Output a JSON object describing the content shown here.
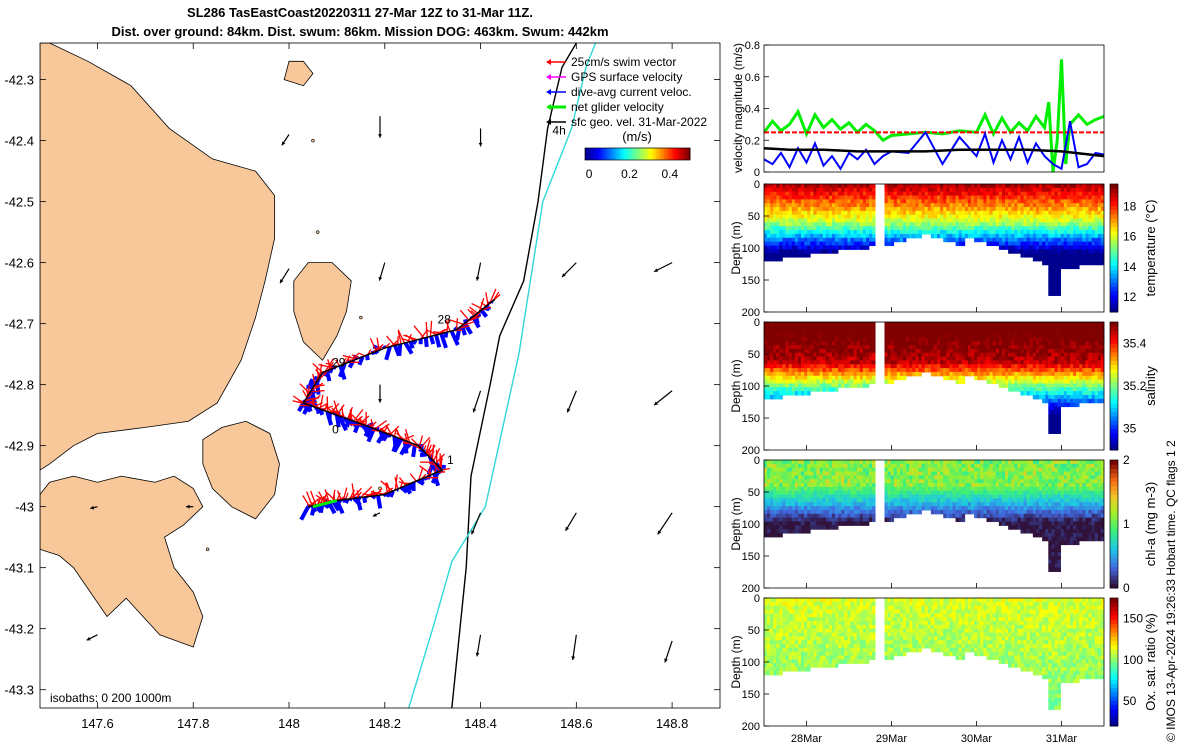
{
  "title": {
    "line1": "SL286 TasEastCoast20220311 27-Mar 12Z to 31-Mar 11Z.",
    "line2": "Dist. over ground: 84km. Dist. swum: 86km. Mission DOG: 463km. Swum: 442km"
  },
  "credit": "© IMOS 13-Apr-2024 19:26:33 Hobart time. QC flags 1  2",
  "colors": {
    "land": "#f8c79a",
    "swim_vector": "#ff0000",
    "gps_velocity": "#ff00ff",
    "current": "#0000ff",
    "net_velocity": "#00ee00",
    "geo_velocity": "#000000",
    "isobath": "#000000",
    "isobath_deep": "#30d8d8"
  },
  "chart_data": [
    {
      "type": "map",
      "xlim": [
        147.48,
        148.9
      ],
      "ylim": [
        -43.33,
        -42.24
      ],
      "x_ticks": [
        147.6,
        147.8,
        148,
        148.2,
        148.4,
        148.6,
        148.8
      ],
      "x_tick_labels": [
        "147.6",
        "147.8",
        "148",
        "148.2",
        "148.4",
        "148.6",
        "148.8"
      ],
      "y_ticks": [
        -42.3,
        -42.4,
        -42.5,
        -42.6,
        -42.7,
        -42.8,
        -42.9,
        -43,
        -43.1,
        -43.2,
        -43.3
      ],
      "y_tick_labels": [
        "-42.3",
        "-42.4",
        "-42.5",
        "-42.6",
        "-42.7",
        "-42.8",
        "-42.9",
        "-43",
        "-43.1",
        "-43.2",
        "-43.3"
      ],
      "legend": [
        {
          "label": "25cm/s swim vector",
          "color": "#ff0000"
        },
        {
          "label": "GPS surface velocity",
          "color": "#ff00ff"
        },
        {
          "label": "dive-avg current veloc.",
          "color": "#0000ff"
        },
        {
          "label": "net glider velocity",
          "color": "#00ee00"
        },
        {
          "label": "sfc geo. vel. 31-Mar-2022",
          "color": "#000000"
        }
      ],
      "colorbar": {
        "label": "(m/s)",
        "ticks": [
          "0",
          "0.2",
          "0.4"
        ],
        "range": [
          -0.02,
          0.5
        ]
      },
      "isobath_label": "isobaths: 0   200  1000m",
      "isobath_200": [
        [
          148.34,
          -43.33
        ],
        [
          148.37,
          -43.1
        ],
        [
          148.38,
          -42.95
        ],
        [
          148.42,
          -42.8
        ],
        [
          148.44,
          -42.72
        ],
        [
          148.49,
          -42.63
        ],
        [
          148.52,
          -42.5
        ],
        [
          148.54,
          -42.38
        ],
        [
          148.57,
          -42.28
        ],
        [
          148.6,
          -42.24
        ]
      ],
      "isobath_1000": [
        [
          148.25,
          -43.33
        ],
        [
          148.3,
          -43.2
        ],
        [
          148.34,
          -43.09
        ],
        [
          148.41,
          -43.0
        ],
        [
          148.48,
          -42.75
        ],
        [
          148.53,
          -42.5
        ],
        [
          148.59,
          -42.38
        ],
        [
          148.62,
          -42.28
        ],
        [
          148.64,
          -42.24
        ]
      ],
      "track": [
        [
          148.04,
          -43.0
        ],
        [
          148.1,
          -42.99
        ],
        [
          148.2,
          -42.98
        ],
        [
          148.32,
          -42.94
        ],
        [
          148.27,
          -42.9
        ],
        [
          148.17,
          -42.87
        ],
        [
          148.1,
          -42.85
        ],
        [
          148.03,
          -42.83
        ],
        [
          148.07,
          -42.78
        ],
        [
          148.2,
          -42.74
        ],
        [
          148.35,
          -42.71
        ],
        [
          148.43,
          -42.66
        ]
      ],
      "track_day_labels": [
        {
          "label": "28",
          "lon": 148.31,
          "lat": -42.7
        },
        {
          "label": "29",
          "lon": 148.09,
          "lat": -42.77
        },
        {
          "label": "0",
          "lon": 148.09,
          "lat": -42.88
        },
        {
          "label": "1",
          "lon": 148.33,
          "lat": -42.93
        },
        {
          "label": "4h",
          "lon": 148.55,
          "lat": -42.39
        }
      ],
      "geo_vectors": [
        {
          "lon": 148.19,
          "lat": -42.36,
          "u": 0.0,
          "v": -0.012
        },
        {
          "lon": 148.4,
          "lat": -42.38,
          "u": 0.0,
          "v": -0.01
        },
        {
          "lon": 148.0,
          "lat": -42.39,
          "u": -0.004,
          "v": -0.006
        },
        {
          "lon": 148.0,
          "lat": -42.61,
          "u": -0.005,
          "v": -0.008
        },
        {
          "lon": 148.2,
          "lat": -42.6,
          "u": -0.003,
          "v": -0.01
        },
        {
          "lon": 148.4,
          "lat": -42.6,
          "u": -0.002,
          "v": -0.01
        },
        {
          "lon": 148.6,
          "lat": -42.6,
          "u": -0.008,
          "v": -0.008
        },
        {
          "lon": 148.8,
          "lat": -42.6,
          "u": -0.01,
          "v": -0.005
        },
        {
          "lon": 148.19,
          "lat": -42.8,
          "u": 0.0,
          "v": -0.01
        },
        {
          "lon": 148.4,
          "lat": -42.81,
          "u": -0.004,
          "v": -0.012
        },
        {
          "lon": 148.6,
          "lat": -42.81,
          "u": -0.005,
          "v": -0.012
        },
        {
          "lon": 148.8,
          "lat": -42.81,
          "u": -0.01,
          "v": -0.008
        },
        {
          "lon": 148.6,
          "lat": -43.01,
          "u": -0.006,
          "v": -0.01
        },
        {
          "lon": 148.8,
          "lat": -43.01,
          "u": -0.008,
          "v": -0.012
        },
        {
          "lon": 148.4,
          "lat": -43.01,
          "u": -0.005,
          "v": -0.012
        },
        {
          "lon": 147.6,
          "lat": -43.0,
          "u": -0.004,
          "v": -0.001
        },
        {
          "lon": 147.8,
          "lat": -43.0,
          "u": -0.004,
          "v": 0.0
        },
        {
          "lon": 148.19,
          "lat": -43.01,
          "u": -0.004,
          "v": -0.002
        },
        {
          "lon": 147.6,
          "lat": -43.21,
          "u": -0.006,
          "v": -0.003
        },
        {
          "lon": 148.4,
          "lat": -43.21,
          "u": -0.002,
          "v": -0.012
        },
        {
          "lon": 148.6,
          "lat": -43.21,
          "u": -0.002,
          "v": -0.014
        },
        {
          "lon": 148.8,
          "lat": -43.22,
          "u": -0.004,
          "v": -0.012
        }
      ],
      "coastline": [
        [
          [
            147.48,
            -42.24
          ],
          [
            147.5,
            -42.24
          ],
          [
            147.58,
            -42.27
          ],
          [
            147.67,
            -42.31
          ],
          [
            147.75,
            -42.38
          ],
          [
            147.84,
            -42.43
          ],
          [
            147.93,
            -42.45
          ],
          [
            147.97,
            -42.49
          ],
          [
            147.97,
            -42.56
          ],
          [
            147.95,
            -42.63
          ],
          [
            147.93,
            -42.69
          ],
          [
            147.9,
            -42.76
          ],
          [
            147.85,
            -42.83
          ],
          [
            147.79,
            -42.86
          ],
          [
            147.7,
            -42.87
          ],
          [
            147.6,
            -42.88
          ],
          [
            147.55,
            -42.9
          ],
          [
            147.5,
            -42.93
          ],
          [
            147.48,
            -42.94
          ]
        ],
        [
          [
            147.48,
            -42.98
          ],
          [
            147.5,
            -42.96
          ],
          [
            147.55,
            -42.95
          ],
          [
            147.6,
            -42.96
          ],
          [
            147.65,
            -42.95
          ],
          [
            147.72,
            -42.96
          ],
          [
            147.76,
            -42.95
          ],
          [
            147.8,
            -42.97
          ],
          [
            147.82,
            -43.0
          ],
          [
            147.78,
            -43.03
          ],
          [
            147.74,
            -43.05
          ],
          [
            147.76,
            -43.1
          ],
          [
            147.8,
            -43.14
          ],
          [
            147.82,
            -43.18
          ],
          [
            147.8,
            -43.23
          ],
          [
            147.73,
            -43.21
          ],
          [
            147.66,
            -43.15
          ],
          [
            147.62,
            -43.18
          ],
          [
            147.55,
            -43.1
          ],
          [
            147.52,
            -43.08
          ],
          [
            147.48,
            -43.07
          ]
        ],
        [
          [
            147.82,
            -42.89
          ],
          [
            147.86,
            -42.87
          ],
          [
            147.91,
            -42.86
          ],
          [
            147.96,
            -42.88
          ],
          [
            147.98,
            -42.93
          ],
          [
            147.97,
            -42.98
          ],
          [
            147.93,
            -43.02
          ],
          [
            147.88,
            -43.0
          ],
          [
            147.84,
            -42.97
          ],
          [
            147.82,
            -42.93
          ]
        ],
        [
          [
            148.01,
            -42.63
          ],
          [
            148.04,
            -42.6
          ],
          [
            148.09,
            -42.6
          ],
          [
            148.13,
            -42.63
          ],
          [
            148.12,
            -42.68
          ],
          [
            148.1,
            -42.72
          ],
          [
            148.07,
            -42.76
          ],
          [
            148.03,
            -42.73
          ],
          [
            148.01,
            -42.68
          ]
        ],
        [
          [
            148.0,
            -42.27
          ],
          [
            148.03,
            -42.27
          ],
          [
            148.05,
            -42.29
          ],
          [
            148.03,
            -42.31
          ],
          [
            147.99,
            -42.3
          ]
        ]
      ]
    },
    {
      "type": "line",
      "ylabel": "velocity magnitude (m/s)",
      "ylim": [
        0,
        0.8
      ],
      "yticks": [
        0,
        0.2,
        0.4,
        0.6,
        0.8
      ],
      "xlim": [
        27.5,
        31.5
      ],
      "series": [
        {
          "name": "net glider velocity",
          "color": "#00ee00",
          "x": [
            27.5,
            27.6,
            27.7,
            27.8,
            27.9,
            28.0,
            28.1,
            28.2,
            28.3,
            28.4,
            28.5,
            28.6,
            28.7,
            28.8,
            28.9,
            29.0,
            29.2,
            29.4,
            29.6,
            29.8,
            30.0,
            30.1,
            30.2,
            30.3,
            30.4,
            30.5,
            30.6,
            30.7,
            30.8,
            30.85,
            30.9,
            30.95,
            31.0,
            31.05,
            31.1,
            31.2,
            31.3,
            31.4,
            31.5
          ],
          "y": [
            0.25,
            0.32,
            0.26,
            0.3,
            0.38,
            0.24,
            0.36,
            0.28,
            0.33,
            0.27,
            0.31,
            0.25,
            0.3,
            0.26,
            0.2,
            0.23,
            0.24,
            0.25,
            0.24,
            0.26,
            0.25,
            0.36,
            0.24,
            0.34,
            0.25,
            0.31,
            0.26,
            0.35,
            0.28,
            0.44,
            0.0,
            0.2,
            0.71,
            0.05,
            0.3,
            0.36,
            0.3,
            0.33,
            0.35
          ]
        },
        {
          "name": "swim speed",
          "color": "#ff0000",
          "x": [
            27.5,
            31.5
          ],
          "y": [
            0.25,
            0.25
          ]
        },
        {
          "name": "dive-avg current",
          "color": "#0000ff",
          "x": [
            27.5,
            27.6,
            27.7,
            27.8,
            27.9,
            28.0,
            28.1,
            28.2,
            28.3,
            28.4,
            28.5,
            28.6,
            28.7,
            28.8,
            28.9,
            29.0,
            29.2,
            29.4,
            29.6,
            29.8,
            30.0,
            30.1,
            30.2,
            30.3,
            30.4,
            30.5,
            30.6,
            30.7,
            30.8,
            30.9,
            31.0,
            31.1,
            31.2,
            31.3,
            31.4,
            31.5
          ],
          "y": [
            0.08,
            0.05,
            0.12,
            0.03,
            0.15,
            0.06,
            0.18,
            0.04,
            0.1,
            0.02,
            0.12,
            0.08,
            0.14,
            0.05,
            0.1,
            0.13,
            0.12,
            0.25,
            0.05,
            0.22,
            0.1,
            0.24,
            0.06,
            0.2,
            0.08,
            0.22,
            0.06,
            0.18,
            0.1,
            0.05,
            0.02,
            0.32,
            0.03,
            0.05,
            0.12,
            0.11
          ]
        },
        {
          "name": "geo velocity",
          "color": "#000000",
          "x": [
            27.5,
            27.8,
            28.2,
            28.6,
            29.0,
            29.4,
            29.8,
            30.2,
            30.6,
            31.0,
            31.5
          ],
          "y": [
            0.15,
            0.14,
            0.14,
            0.13,
            0.13,
            0.13,
            0.14,
            0.14,
            0.14,
            0.13,
            0.1
          ]
        }
      ]
    },
    {
      "type": "section",
      "variable": "temperature (°C)",
      "ylabel": "Depth (m)",
      "yticks": [
        0,
        50,
        100,
        150,
        200
      ],
      "colorbar_ticks": [
        "12",
        "14",
        "16",
        "18"
      ],
      "colorbar_range": [
        11,
        19.5
      ],
      "xticks": [
        "28Mar",
        "29Mar",
        "30Mar",
        "31Mar"
      ]
    },
    {
      "type": "section",
      "variable": "salinity",
      "ylabel": "Depth (m)",
      "yticks": [
        0,
        50,
        100,
        150,
        200
      ],
      "colorbar_ticks": [
        "35",
        "35.2",
        "35.4"
      ],
      "colorbar_range": [
        34.9,
        35.5
      ],
      "xticks": [
        "28Mar",
        "29Mar",
        "30Mar",
        "31Mar"
      ]
    },
    {
      "type": "section",
      "variable": "chl-a (mg m-3)",
      "ylabel": "Depth (m)",
      "yticks": [
        0,
        50,
        100,
        150,
        200
      ],
      "colorbar_ticks": [
        "0",
        "1",
        "2"
      ],
      "colorbar_range": [
        0,
        2
      ],
      "xticks": [
        "28Mar",
        "29Mar",
        "30Mar",
        "31Mar"
      ]
    },
    {
      "type": "section",
      "variable": "Ox. sat. ratio (%)",
      "ylabel": "Depth (m)",
      "yticks": [
        0,
        50,
        100,
        150,
        200
      ],
      "colorbar_ticks": [
        "50",
        "100",
        "150"
      ],
      "colorbar_range": [
        20,
        175
      ],
      "xticks": [
        "28Mar",
        "29Mar",
        "30Mar",
        "31Mar"
      ]
    }
  ]
}
